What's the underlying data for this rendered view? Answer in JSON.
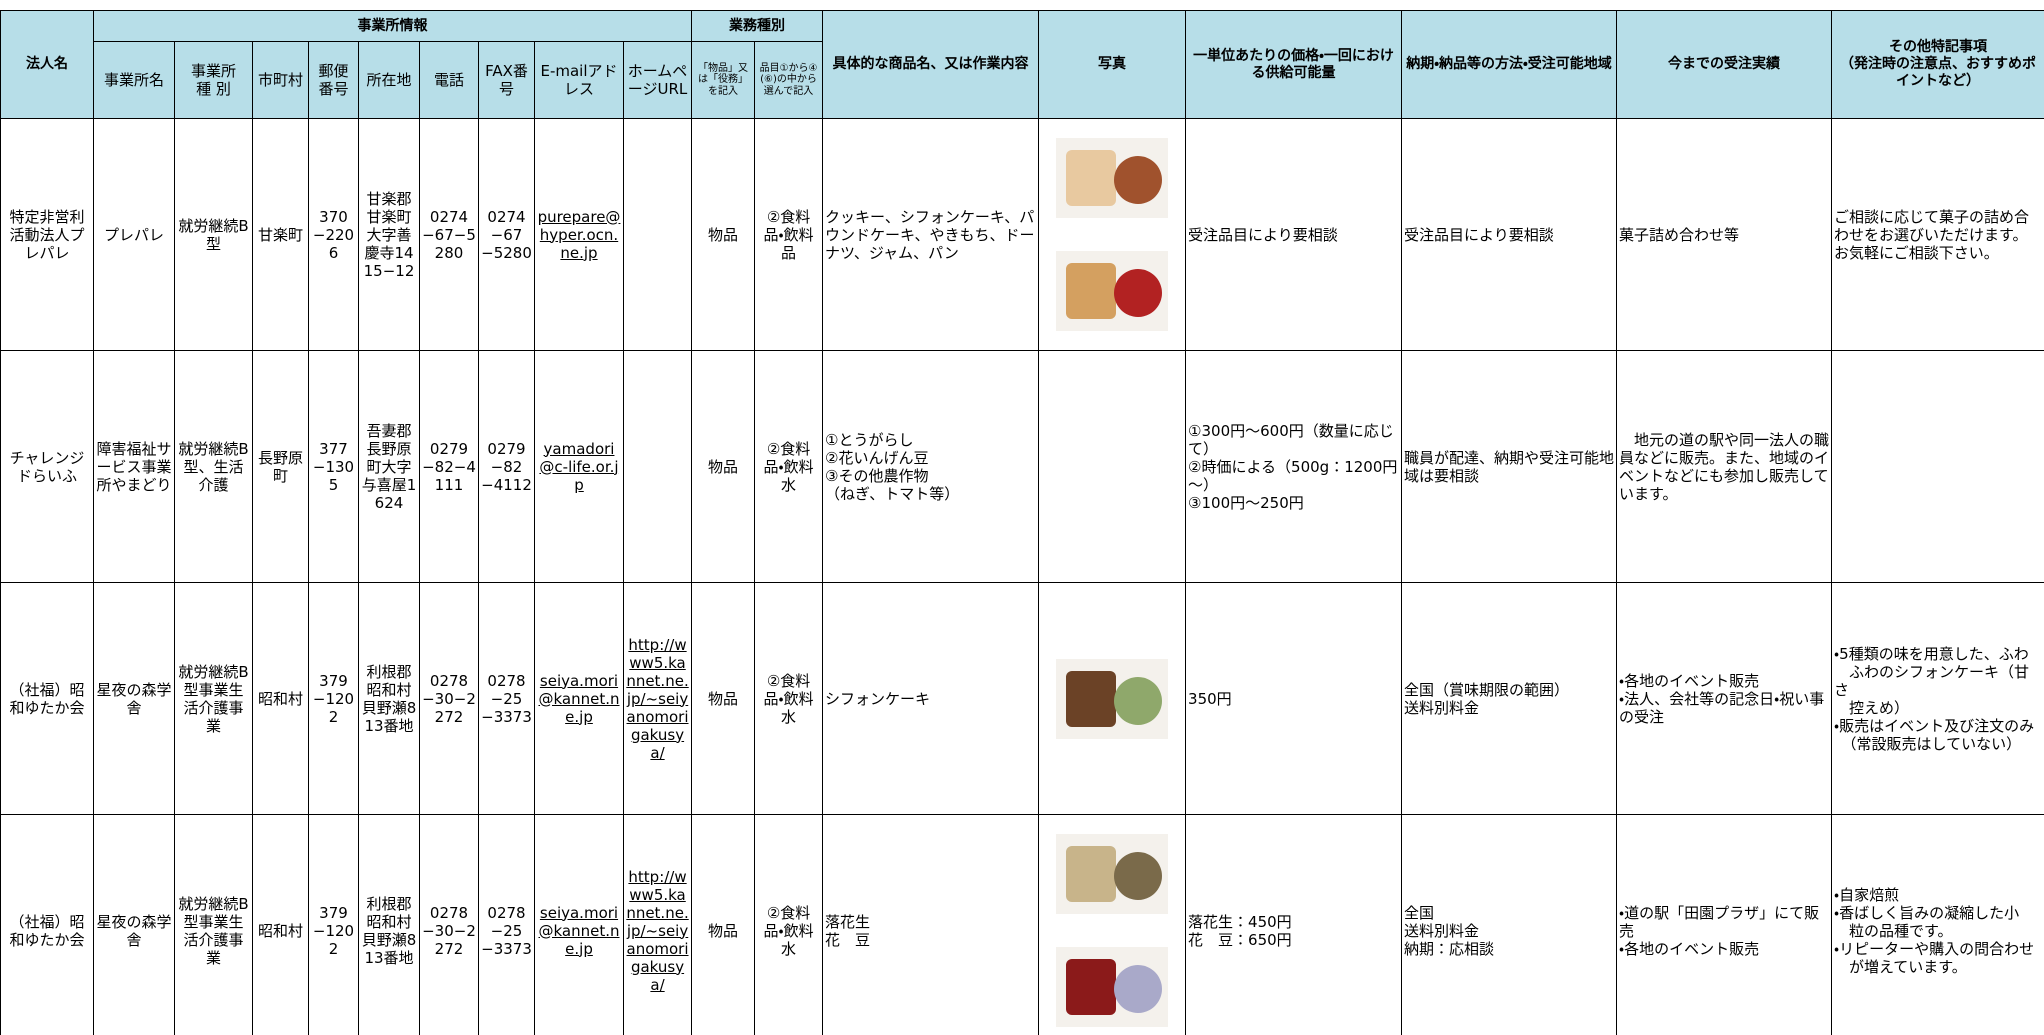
{
  "header": {
    "corp": "法人名",
    "group_office": "事業所情報",
    "group_business": "業務種別",
    "columns": {
      "office": "事業所名",
      "office_type": "事業所\n種 別",
      "city": "市町村",
      "zip": "郵便\n番号",
      "address": "所在地",
      "tel": "電話",
      "fax": "FAX番号",
      "email": "E-mailアドレス",
      "url": "ホームページURL",
      "kind": "「物品」又は「役務」を記入",
      "item": "品目①から④(⑥)の中から選んで記入"
    },
    "products": "具体的な商品名、又は作業内容",
    "photo": "写真",
    "price": "一単位あたりの価格・一回における供給可能量",
    "delivery": "納期・納品等の方法・受注可能地域",
    "record": "今までの受注実績",
    "notes": "その他特記事項\n（発注時の注意点、おすすめポイントなど）"
  },
  "rows": [
    {
      "corp": "特定非営利活動法人プレパレ",
      "office": "プレパレ",
      "office_type": "就労継続B型",
      "city": "甘楽町",
      "zip": "370−2206",
      "address": "甘楽郡甘楽町大字善慶寺1415−12",
      "tel": "0274−67−5280",
      "fax": "0274−67−5280",
      "email": "purepare@hyper.ocn.ne.jp",
      "kind": "物品",
      "item": "②食料品・飲料品",
      "products": "クッキー、シフォンケーキ、パウンドケーキ、やきもち、ドーナツ、ジャム、パン",
      "price": "受注品目により要相談",
      "delivery": "受注品目により要相談",
      "record": "菓子詰め合わせ等",
      "notes": "ご相談に応じて菓子の詰め合わせをお選びいただけます。\nお気軽にご相談下さい。"
    },
    {
      "corp": "チャレンジドらいふ",
      "office": "障害福祉サービス事業所やまどり",
      "office_type": "就労継続B型、生活介護",
      "city": "長野原町",
      "zip": "377−1305",
      "address": "吾妻郡長野原町大字与喜屋1624",
      "tel": "0279−82−4111",
      "fax": "0279−82−4112",
      "email": "yamadori@c-life.or.jp",
      "kind": "物品",
      "item": "②食料品・飲料水",
      "products": "①とうがらし\n②花いんげん豆\n③その他農作物\n（ねぎ、トマト等）",
      "price": "①300円～600円（数量に応じて）\n②時価による（500g：1200円～）\n③100円～250円",
      "delivery": "職員が配達、納期や受注可能地域は要相談",
      "record": "　地元の道の駅や同一法人の職員などに販売。また、地域のイベントなどにも参加し販売しています。"
    },
    {
      "corp": "（社福）昭和ゆたか会",
      "office": "星夜の森学舎",
      "office_type": "就労継続B型事業生活介護事業",
      "city": "昭和村",
      "zip": "379−1202",
      "address": "利根郡昭和村貝野瀬813番地",
      "tel": "0278−30−2272",
      "fax": "0278−25−3373",
      "email": "seiya.mori@kannet.ne.jp",
      "url": "http://www5.kannet.ne.jp/~seiyanomorigakusya/",
      "kind": "物品",
      "item": "②食料品・飲料水",
      "products": "シフォンケーキ",
      "price": "350円",
      "delivery": "全国（賞味期限の範囲）\n送料別料金",
      "record": "・各地のイベント販売\n・法人、会社等の記念日・祝い事の受注",
      "notes": "・5種類の味を用意した、ふわ\n　ふわのシフォンケーキ（甘さ\n　控えめ）\n・販売はイベント及び注文のみ\n　（常設販売はしていない）"
    },
    {
      "corp": "（社福）昭和ゆたか会",
      "office": "星夜の森学舎",
      "office_type": "就労継続B型事業生活介護事業",
      "city": "昭和村",
      "zip": "379−1202",
      "address": "利根郡昭和村貝野瀬813番地",
      "tel": "0278−30−2272",
      "fax": "0278−25−3373",
      "email": "seiya.mori@kannet.ne.jp",
      "url": "http://www5.kannet.ne.jp/~seiyanomorigakusya/",
      "kind": "物品",
      "item": "②食料品・飲料水",
      "products": "落花生\n花　豆",
      "price": "落花生：450円\n花　豆：650円",
      "delivery": "全国\n送料別料金\n納期：応相談",
      "record": "・道の駅「田園プラザ」にて販売\n・各地のイベント販売",
      "notes": "・自家焙煎\n・香ばしく旨みの凝縮した小\n　粒の品種です。\n・リピーターや購入の問合わせ\n　が増えています。"
    }
  ]
}
